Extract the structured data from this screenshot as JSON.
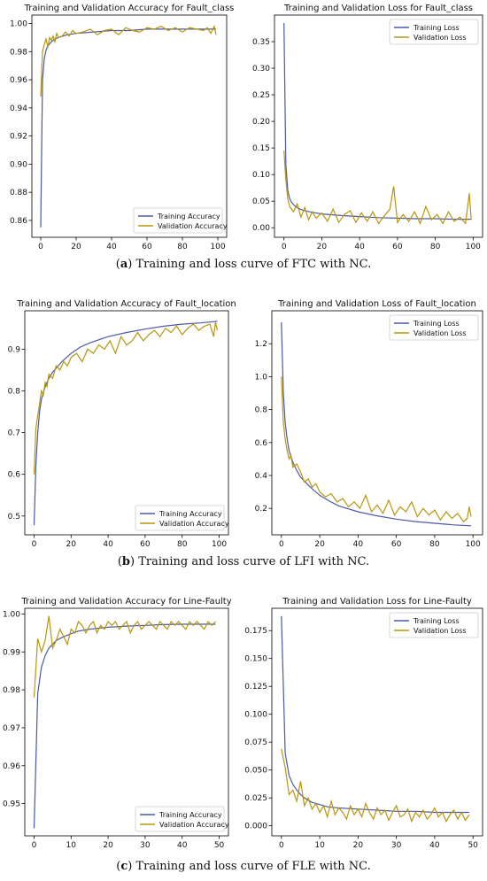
{
  "captions": [
    {
      "letter": "a",
      "text": " Training and loss curve of FTC with NC."
    },
    {
      "letter": "b",
      "text": " Training and loss curve of LFI with NC."
    },
    {
      "letter": "c",
      "text": " Training and loss curve of FLE with NC."
    }
  ],
  "colors": {
    "training": "#4a5aa8",
    "validation": "#b8960c"
  },
  "chart_data": [
    {
      "type": "line",
      "title": "Training and Validation Accuracy for Fault_class",
      "xlim": [
        -5,
        105
      ],
      "ylim": [
        0.848,
        1.006
      ],
      "xticks": [
        0,
        20,
        40,
        60,
        80,
        100
      ],
      "yticks": [
        0.86,
        0.88,
        0.9,
        0.92,
        0.94,
        0.96,
        0.98,
        1.0
      ],
      "ytick_decimals": 2,
      "legend": "lower-right",
      "series": [
        {
          "name": "Training Accuracy",
          "kind": "training",
          "x": [
            0,
            1,
            2,
            3,
            4,
            6,
            8,
            10,
            15,
            20,
            30,
            40,
            50,
            60,
            70,
            80,
            90,
            99
          ],
          "y": [
            0.855,
            0.96,
            0.975,
            0.981,
            0.984,
            0.987,
            0.989,
            0.99,
            0.992,
            0.993,
            0.994,
            0.995,
            0.995,
            0.996,
            0.996,
            0.996,
            0.996,
            0.996
          ]
        },
        {
          "name": "Validation Accuracy",
          "kind": "validation",
          "x": [
            0,
            1,
            2,
            3,
            4,
            5,
            6,
            7,
            8,
            9,
            10,
            12,
            14,
            16,
            18,
            20,
            24,
            28,
            32,
            36,
            40,
            44,
            48,
            52,
            56,
            60,
            64,
            68,
            72,
            76,
            80,
            84,
            88,
            92,
            94,
            96,
            98,
            99
          ],
          "y": [
            0.948,
            0.98,
            0.985,
            0.989,
            0.983,
            0.99,
            0.988,
            0.991,
            0.987,
            0.993,
            0.99,
            0.991,
            0.994,
            0.991,
            0.995,
            0.993,
            0.994,
            0.996,
            0.992,
            0.995,
            0.996,
            0.992,
            0.997,
            0.995,
            0.994,
            0.997,
            0.996,
            0.998,
            0.995,
            0.997,
            0.994,
            0.997,
            0.996,
            0.995,
            0.997,
            0.993,
            0.998,
            0.992
          ]
        }
      ]
    },
    {
      "type": "line",
      "title": "Training and Validation Loss for Fault_class",
      "xlim": [
        -5,
        105
      ],
      "ylim": [
        -0.018,
        0.4
      ],
      "xticks": [
        0,
        20,
        40,
        60,
        80,
        100
      ],
      "yticks": [
        0.0,
        0.05,
        0.1,
        0.15,
        0.2,
        0.25,
        0.3,
        0.35
      ],
      "ytick_decimals": 2,
      "legend": "upper-right",
      "series": [
        {
          "name": "Training Loss",
          "kind": "training",
          "x": [
            0,
            1,
            2,
            3,
            4,
            6,
            8,
            10,
            15,
            20,
            30,
            40,
            50,
            60,
            70,
            80,
            90,
            99
          ],
          "y": [
            0.385,
            0.12,
            0.07,
            0.055,
            0.048,
            0.04,
            0.036,
            0.033,
            0.029,
            0.026,
            0.023,
            0.021,
            0.019,
            0.018,
            0.017,
            0.017,
            0.016,
            0.016
          ]
        },
        {
          "name": "Validation Loss",
          "kind": "validation",
          "x": [
            0,
            1,
            2,
            3,
            5,
            7,
            9,
            11,
            13,
            15,
            17,
            20,
            23,
            26,
            29,
            32,
            35,
            38,
            41,
            44,
            47,
            50,
            53,
            56,
            58,
            60,
            63,
            66,
            69,
            72,
            75,
            78,
            81,
            84,
            87,
            90,
            93,
            96,
            98,
            99
          ],
          "y": [
            0.145,
            0.09,
            0.055,
            0.04,
            0.03,
            0.045,
            0.02,
            0.038,
            0.015,
            0.03,
            0.018,
            0.028,
            0.012,
            0.035,
            0.01,
            0.025,
            0.032,
            0.01,
            0.028,
            0.012,
            0.03,
            0.008,
            0.022,
            0.035,
            0.078,
            0.01,
            0.025,
            0.012,
            0.03,
            0.008,
            0.04,
            0.015,
            0.025,
            0.008,
            0.03,
            0.012,
            0.02,
            0.008,
            0.065,
            0.015
          ]
        }
      ]
    },
    {
      "type": "line",
      "title": "Training and Validation Accuracy of Fault_location",
      "xlim": [
        -5,
        105
      ],
      "ylim": [
        0.455,
        0.992
      ],
      "xticks": [
        0,
        20,
        40,
        60,
        80,
        100
      ],
      "yticks": [
        0.5,
        0.6,
        0.7,
        0.8,
        0.9
      ],
      "ytick_decimals": 1,
      "legend": "lower-right",
      "series": [
        {
          "name": "Training Accuracy",
          "kind": "training",
          "x": [
            0,
            1,
            2,
            3,
            4,
            6,
            8,
            10,
            15,
            20,
            25,
            30,
            40,
            50,
            60,
            70,
            80,
            90,
            99
          ],
          "y": [
            0.478,
            0.62,
            0.7,
            0.75,
            0.78,
            0.81,
            0.83,
            0.845,
            0.87,
            0.89,
            0.905,
            0.915,
            0.93,
            0.94,
            0.948,
            0.955,
            0.96,
            0.963,
            0.967
          ]
        },
        {
          "name": "Validation Accuracy",
          "kind": "validation",
          "x": [
            0,
            1,
            2,
            3,
            4,
            5,
            6,
            7,
            8,
            10,
            12,
            14,
            16,
            18,
            20,
            23,
            26,
            29,
            32,
            35,
            38,
            41,
            44,
            47,
            50,
            53,
            56,
            59,
            62,
            65,
            68,
            71,
            74,
            77,
            80,
            83,
            86,
            89,
            92,
            95,
            97,
            98,
            99
          ],
          "y": [
            0.6,
            0.71,
            0.74,
            0.77,
            0.8,
            0.79,
            0.82,
            0.81,
            0.84,
            0.83,
            0.86,
            0.85,
            0.87,
            0.86,
            0.88,
            0.89,
            0.87,
            0.9,
            0.89,
            0.91,
            0.9,
            0.92,
            0.89,
            0.93,
            0.91,
            0.92,
            0.94,
            0.92,
            0.935,
            0.945,
            0.93,
            0.95,
            0.94,
            0.955,
            0.935,
            0.95,
            0.96,
            0.945,
            0.955,
            0.96,
            0.93,
            0.965,
            0.945
          ]
        }
      ]
    },
    {
      "type": "line",
      "title": "Training and Validation Loss of Fault_location",
      "xlim": [
        -5,
        105
      ],
      "ylim": [
        0.04,
        1.4
      ],
      "xticks": [
        0,
        20,
        40,
        60,
        80,
        100
      ],
      "yticks": [
        0.2,
        0.4,
        0.6,
        0.8,
        1.0,
        1.2
      ],
      "ytick_decimals": 1,
      "legend": "upper-right",
      "series": [
        {
          "name": "Training Loss",
          "kind": "training",
          "x": [
            0,
            1,
            2,
            3,
            4,
            6,
            8,
            10,
            15,
            20,
            25,
            30,
            40,
            50,
            60,
            70,
            80,
            90,
            99
          ],
          "y": [
            1.33,
            0.9,
            0.72,
            0.62,
            0.55,
            0.48,
            0.43,
            0.39,
            0.33,
            0.28,
            0.245,
            0.215,
            0.18,
            0.155,
            0.135,
            0.12,
            0.11,
            0.1,
            0.095
          ]
        },
        {
          "name": "Validation Loss",
          "kind": "validation",
          "x": [
            0,
            1,
            2,
            3,
            4,
            5,
            6,
            8,
            10,
            12,
            14,
            16,
            18,
            20,
            23,
            26,
            29,
            32,
            35,
            38,
            41,
            44,
            47,
            50,
            53,
            56,
            59,
            62,
            65,
            68,
            71,
            74,
            77,
            80,
            83,
            86,
            89,
            92,
            95,
            97,
            98,
            99
          ],
          "y": [
            1.0,
            0.72,
            0.62,
            0.55,
            0.5,
            0.52,
            0.45,
            0.47,
            0.42,
            0.36,
            0.38,
            0.33,
            0.35,
            0.3,
            0.27,
            0.29,
            0.24,
            0.26,
            0.21,
            0.24,
            0.2,
            0.28,
            0.18,
            0.22,
            0.17,
            0.25,
            0.16,
            0.21,
            0.18,
            0.24,
            0.15,
            0.2,
            0.16,
            0.19,
            0.13,
            0.18,
            0.14,
            0.17,
            0.12,
            0.14,
            0.21,
            0.15
          ]
        }
      ]
    },
    {
      "type": "line",
      "title": "Training and Validation Accuracy for Line-Faulty",
      "xlim": [
        -2.5,
        52.5
      ],
      "ylim": [
        0.9415,
        1.0015
      ],
      "xticks": [
        0,
        10,
        20,
        30,
        40,
        50
      ],
      "yticks": [
        0.95,
        0.96,
        0.97,
        0.98,
        0.99,
        1.0
      ],
      "ytick_decimals": 2,
      "legend": "lower-right",
      "series": [
        {
          "name": "Training Accuracy",
          "kind": "training",
          "x": [
            0,
            1,
            2,
            3,
            4,
            5,
            6,
            8,
            10,
            12,
            15,
            20,
            25,
            30,
            35,
            40,
            45,
            49
          ],
          "y": [
            0.9435,
            0.979,
            0.986,
            0.989,
            0.991,
            0.992,
            0.993,
            0.994,
            0.9948,
            0.9955,
            0.996,
            0.9965,
            0.9968,
            0.997,
            0.9972,
            0.9973,
            0.9973,
            0.9973
          ]
        },
        {
          "name": "Validation Accuracy",
          "kind": "validation",
          "x": [
            0,
            1,
            2,
            3,
            4,
            5,
            6,
            7,
            8,
            9,
            10,
            11,
            12,
            13,
            14,
            15,
            16,
            17,
            18,
            19,
            20,
            21,
            22,
            23,
            24,
            25,
            26,
            27,
            28,
            29,
            30,
            31,
            32,
            33,
            34,
            35,
            36,
            37,
            38,
            39,
            40,
            41,
            42,
            43,
            44,
            45,
            46,
            47,
            48,
            49
          ],
          "y": [
            0.978,
            0.9935,
            0.99,
            0.993,
            0.9995,
            0.991,
            0.993,
            0.996,
            0.994,
            0.992,
            0.996,
            0.995,
            0.998,
            0.997,
            0.995,
            0.997,
            0.998,
            0.995,
            0.997,
            0.996,
            0.998,
            0.997,
            0.998,
            0.996,
            0.997,
            0.998,
            0.995,
            0.997,
            0.998,
            0.996,
            0.997,
            0.998,
            0.997,
            0.996,
            0.998,
            0.997,
            0.996,
            0.998,
            0.997,
            0.998,
            0.997,
            0.996,
            0.998,
            0.997,
            0.998,
            0.997,
            0.996,
            0.998,
            0.997,
            0.998
          ]
        }
      ]
    },
    {
      "type": "line",
      "title": "Training and Validation Loss for Line-Faulty",
      "xlim": [
        -2.5,
        52.5
      ],
      "ylim": [
        -0.009,
        0.195
      ],
      "xticks": [
        0,
        10,
        20,
        30,
        40,
        50
      ],
      "yticks": [
        0.0,
        0.025,
        0.05,
        0.075,
        0.1,
        0.125,
        0.15,
        0.175
      ],
      "ytick_decimals": 3,
      "legend": "upper-right",
      "series": [
        {
          "name": "Training Loss",
          "kind": "training",
          "x": [
            0,
            1,
            2,
            3,
            4,
            5,
            6,
            8,
            10,
            12,
            15,
            20,
            25,
            30,
            35,
            40,
            45,
            49
          ],
          "y": [
            0.188,
            0.065,
            0.045,
            0.037,
            0.032,
            0.028,
            0.025,
            0.021,
            0.019,
            0.017,
            0.016,
            0.015,
            0.014,
            0.013,
            0.013,
            0.012,
            0.012,
            0.012
          ]
        },
        {
          "name": "Validation Loss",
          "kind": "validation",
          "x": [
            0,
            1,
            2,
            3,
            4,
            5,
            6,
            7,
            8,
            9,
            10,
            11,
            12,
            13,
            14,
            15,
            16,
            17,
            18,
            19,
            20,
            21,
            22,
            23,
            24,
            25,
            26,
            27,
            28,
            29,
            30,
            31,
            32,
            33,
            34,
            35,
            36,
            37,
            38,
            39,
            40,
            41,
            42,
            43,
            44,
            45,
            46,
            47,
            48,
            49
          ],
          "y": [
            0.069,
            0.052,
            0.028,
            0.032,
            0.022,
            0.04,
            0.018,
            0.025,
            0.015,
            0.02,
            0.012,
            0.018,
            0.008,
            0.022,
            0.01,
            0.016,
            0.012,
            0.006,
            0.018,
            0.01,
            0.015,
            0.008,
            0.02,
            0.012,
            0.006,
            0.016,
            0.01,
            0.014,
            0.005,
            0.012,
            0.018,
            0.008,
            0.01,
            0.015,
            0.004,
            0.012,
            0.008,
            0.014,
            0.006,
            0.01,
            0.016,
            0.008,
            0.012,
            0.004,
            0.01,
            0.014,
            0.006,
            0.012,
            0.005,
            0.01
          ]
        }
      ]
    }
  ]
}
